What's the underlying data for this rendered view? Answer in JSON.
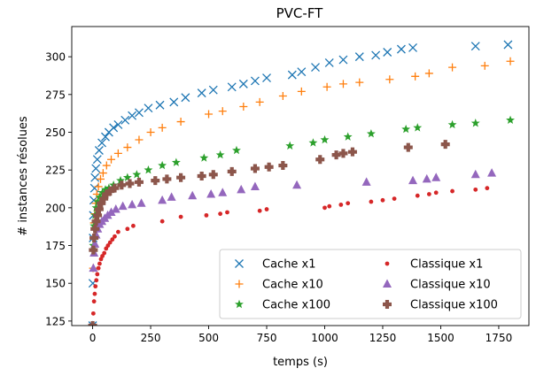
{
  "chart_data": {
    "type": "scatter",
    "title": "PVC-FT",
    "xlabel": "temps (s)",
    "ylabel": "# instances résolues",
    "xlim": [
      -90,
      1880
    ],
    "ylim": [
      122,
      320
    ],
    "xticks": [
      0,
      250,
      500,
      750,
      1000,
      1250,
      1500,
      1750
    ],
    "yticks": [
      125,
      150,
      175,
      200,
      225,
      250,
      275,
      300
    ],
    "grid": false,
    "legend": {
      "placement": "lower-right",
      "columns": 2
    },
    "series": [
      {
        "name": "Cache x1",
        "marker": "x",
        "color": "#1f77b4",
        "x": [
          0,
          1,
          2,
          3,
          5,
          8,
          10,
          14,
          20,
          28,
          40,
          55,
          70,
          90,
          110,
          140,
          170,
          200,
          240,
          290,
          350,
          400,
          470,
          520,
          600,
          650,
          700,
          750,
          860,
          900,
          960,
          1020,
          1080,
          1150,
          1220,
          1270,
          1330,
          1380,
          1650,
          1790
        ],
        "y": [
          122,
          150,
          180,
          195,
          205,
          213,
          220,
          226,
          232,
          238,
          243,
          247,
          250,
          253,
          255,
          258,
          261,
          263,
          266,
          268,
          270,
          273,
          276,
          278,
          280,
          282,
          284,
          286,
          288,
          290,
          293,
          296,
          298,
          300,
          301,
          303,
          305,
          306,
          307,
          308
        ]
      },
      {
        "name": "Cache x10",
        "marker": "+",
        "color": "#ff7f0e",
        "x": [
          0,
          2,
          4,
          6,
          9,
          13,
          18,
          25,
          34,
          45,
          60,
          80,
          110,
          150,
          200,
          250,
          300,
          380,
          500,
          560,
          650,
          720,
          820,
          900,
          1010,
          1080,
          1150,
          1280,
          1390,
          1450,
          1550,
          1690,
          1800
        ],
        "y": [
          122,
          160,
          180,
          190,
          196,
          203,
          209,
          214,
          219,
          223,
          228,
          232,
          236,
          240,
          245,
          250,
          253,
          257,
          262,
          264,
          267,
          270,
          274,
          277,
          280,
          282,
          283,
          285,
          287,
          289,
          293,
          294,
          297
        ]
      },
      {
        "name": "Cache x100",
        "marker": "star",
        "color": "#2ca02c",
        "x": [
          0,
          3,
          6,
          10,
          15,
          22,
          30,
          42,
          55,
          70,
          90,
          120,
          150,
          190,
          240,
          300,
          360,
          480,
          550,
          620,
          850,
          950,
          1000,
          1100,
          1200,
          1350,
          1400,
          1550,
          1650,
          1800
        ],
        "y": [
          122,
          175,
          188,
          195,
          200,
          204,
          207,
          210,
          212,
          213,
          215,
          218,
          220,
          222,
          225,
          228,
          230,
          233,
          235,
          238,
          241,
          243,
          245,
          247,
          249,
          252,
          253,
          255,
          256,
          258
        ]
      },
      {
        "name": "Classique x1",
        "marker": "dot",
        "color": "#d62728",
        "x": [
          0,
          3,
          6,
          9,
          12,
          16,
          20,
          25,
          30,
          36,
          42,
          50,
          58,
          66,
          75,
          85,
          95,
          110,
          150,
          175,
          300,
          380,
          490,
          550,
          580,
          720,
          750,
          1000,
          1020,
          1070,
          1100,
          1200,
          1250,
          1300,
          1400,
          1450,
          1480,
          1550,
          1650,
          1700
        ],
        "y": [
          122,
          130,
          138,
          143,
          148,
          152,
          156,
          160,
          163,
          166,
          168,
          170,
          173,
          175,
          177,
          179,
          181,
          184,
          186,
          188,
          191,
          194,
          195,
          196,
          197,
          198,
          199,
          200,
          201,
          202,
          203,
          204,
          205,
          206,
          208,
          209,
          210,
          211,
          212,
          213
        ]
      },
      {
        "name": "Classique x10",
        "marker": "triangle",
        "color": "#9467bd",
        "x": [
          0,
          3,
          6,
          10,
          15,
          22,
          30,
          40,
          52,
          65,
          80,
          100,
          130,
          170,
          210,
          300,
          340,
          430,
          510,
          560,
          640,
          700,
          880,
          1180,
          1380,
          1440,
          1480,
          1650,
          1720
        ],
        "y": [
          122,
          160,
          170,
          176,
          182,
          186,
          189,
          191,
          193,
          195,
          197,
          199,
          201,
          202,
          203,
          205,
          207,
          208,
          209,
          210,
          212,
          214,
          215,
          217,
          218,
          219,
          220,
          222,
          223
        ]
      },
      {
        "name": "Classique x100",
        "marker": "plus-fat",
        "color": "#8c564b",
        "x": [
          0,
          3,
          6,
          10,
          15,
          21,
          28,
          37,
          48,
          60,
          75,
          95,
          125,
          160,
          200,
          270,
          320,
          380,
          470,
          520,
          600,
          700,
          760,
          820,
          980,
          1050,
          1080,
          1120,
          1360,
          1520
        ],
        "y": [
          122,
          172,
          180,
          186,
          191,
          195,
          199,
          203,
          206,
          209,
          211,
          213,
          215,
          216,
          217,
          218,
          219,
          220,
          221,
          222,
          224,
          226,
          227,
          228,
          232,
          235,
          236,
          237,
          240,
          242
        ]
      }
    ]
  }
}
